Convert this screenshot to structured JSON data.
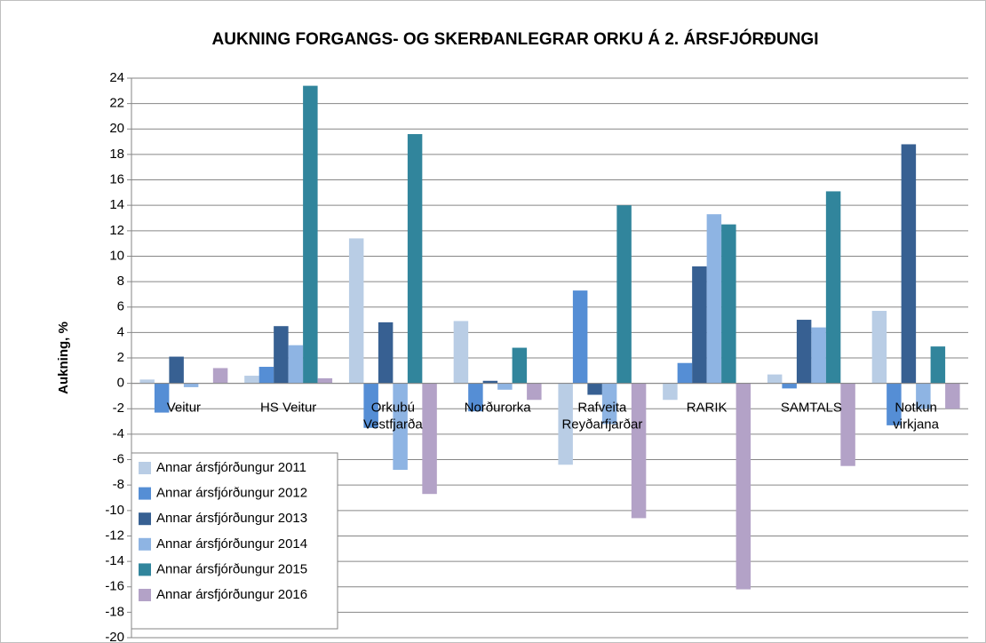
{
  "chart_data": {
    "type": "bar",
    "title": "AUKNING FORGANGS- OG SKERÐANLEGRAR ORKU Á 2. ÁRSFJÓRÐUNGI",
    "y_label": "Aukning, %",
    "categories": [
      "Veitur",
      "HS Veitur",
      "Orkubú Vestfjarða",
      "Norðurorka",
      "Rafveita Reyðarfjarðar",
      "RARIK",
      "SAMTALS",
      "Notkun virkjana"
    ],
    "series": [
      {
        "name": "Annar ársfjórðungur 2011",
        "color": "#b9cde5",
        "values": [
          0.3,
          0.6,
          11.4,
          4.9,
          -6.4,
          -1.3,
          0.7,
          5.7
        ]
      },
      {
        "name": "Annar ársfjórðungur 2012",
        "color": "#558ed5",
        "values": [
          -2.3,
          1.3,
          -3.5,
          -2.2,
          7.3,
          1.6,
          -0.4,
          -3.3
        ]
      },
      {
        "name": "Annar ársfjórðungur 2013",
        "color": "#376092",
        "values": [
          2.1,
          4.5,
          4.8,
          0.2,
          -0.9,
          9.2,
          5.0,
          18.8
        ]
      },
      {
        "name": "Annar ársfjórðungur 2014",
        "color": "#8eb4e3",
        "values": [
          -0.3,
          3.0,
          -6.8,
          -0.5,
          -3.2,
          13.3,
          4.4,
          -2.0
        ]
      },
      {
        "name": "Annar ársfjórðungur 2015",
        "color": "#31859c",
        "values": [
          0,
          23.4,
          19.6,
          2.8,
          14.0,
          12.5,
          15.1,
          2.9
        ]
      },
      {
        "name": "Annar ársfjórðungur 2016",
        "color": "#b3a2c7",
        "values": [
          1.2,
          0.4,
          -8.7,
          -1.3,
          -10.6,
          -16.2,
          -6.5,
          -2.0
        ]
      }
    ],
    "ylim": [
      -20,
      24
    ],
    "yticks": [
      -20,
      -18,
      -16,
      -14,
      -12,
      -10,
      -8,
      -6,
      -4,
      -2,
      0,
      2,
      4,
      6,
      8,
      10,
      12,
      14,
      16,
      18,
      20,
      22,
      24
    ],
    "grid": true,
    "legend": "lower left"
  }
}
